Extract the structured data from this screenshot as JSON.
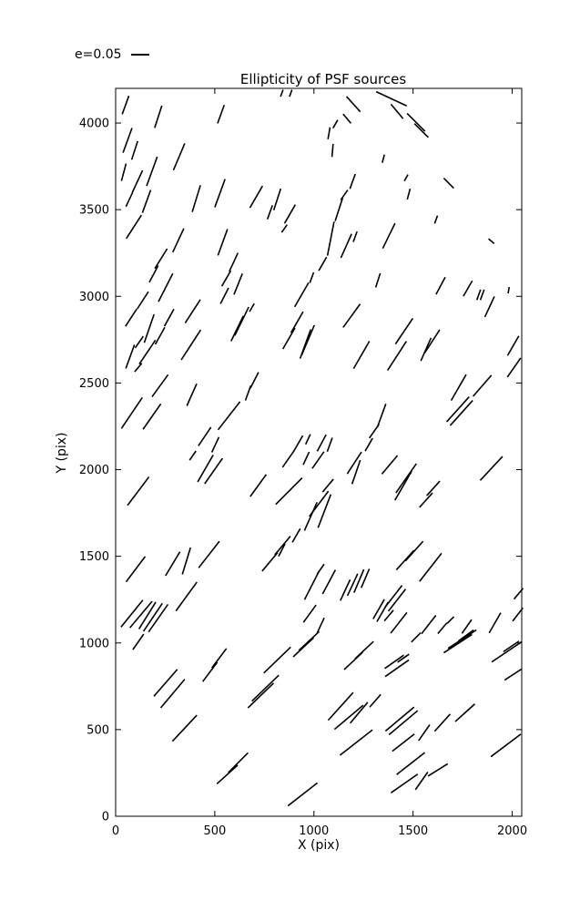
{
  "figure": {
    "title": "Ellipticity of PSF sources",
    "xlabel": "X (pix)",
    "ylabel": "Y (pix)",
    "legend_label": "e=0.05"
  },
  "colors": {
    "stroke": "#000000",
    "background": "#ffffff"
  },
  "chart_data": {
    "type": "scatter",
    "mark": "whisker",
    "title": "Ellipticity of PSF sources",
    "xlabel": "X (pix)",
    "ylabel": "Y (pix)",
    "xlim": [
      0,
      2048
    ],
    "ylim": [
      0,
      4200
    ],
    "xticks": [
      0,
      500,
      1000,
      1500,
      2000
    ],
    "yticks": [
      0,
      500,
      1000,
      1500,
      2000,
      2500,
      3000,
      3500,
      4000
    ],
    "grid": false,
    "legend": {
      "label": "e=0.05",
      "e_ref": 0.05,
      "position": "above-left"
    },
    "columns": [
      "x",
      "y",
      "e",
      "theta_deg"
    ],
    "points": [
      [
        50,
        4104,
        0.058,
        70
      ],
      [
        215,
        4036,
        0.069,
        72
      ],
      [
        531,
        4051,
        0.058,
        70
      ],
      [
        60,
        3900,
        0.078,
        70
      ],
      [
        96,
        3842,
        0.058,
        72
      ],
      [
        320,
        3805,
        0.086,
        67
      ],
      [
        183,
        3721,
        0.092,
        70
      ],
      [
        41,
        3716,
        0.053,
        75
      ],
      [
        110,
        3663,
        0.072,
        65
      ],
      [
        69,
        3559,
        0.047,
        65
      ],
      [
        156,
        3548,
        0.072,
        70
      ],
      [
        407,
        3564,
        0.083,
        73
      ],
      [
        526,
        3595,
        0.089,
        70
      ],
      [
        92,
        3401,
        0.083,
        57
      ],
      [
        316,
        3323,
        0.078,
        65
      ],
      [
        540,
        3312,
        0.083,
        70
      ],
      [
        229,
        3218,
        0.069,
        58
      ],
      [
        595,
        3197,
        0.061,
        65
      ],
      [
        838,
        4172,
        0.022,
        70
      ],
      [
        883,
        4172,
        0.022,
        70
      ],
      [
        1199,
        4109,
        0.061,
        -48
      ],
      [
        1167,
        4025,
        0.036,
        -50
      ],
      [
        1108,
        3994,
        0.028,
        60
      ],
      [
        1076,
        3941,
        0.036,
        80
      ],
      [
        1094,
        3842,
        0.039,
        85
      ],
      [
        1350,
        3794,
        0.025,
        75
      ],
      [
        1195,
        3663,
        0.047,
        70
      ],
      [
        1153,
        3585,
        0.036,
        55
      ],
      [
        709,
        3574,
        0.075,
        60
      ],
      [
        815,
        3559,
        0.067,
        72
      ],
      [
        778,
        3485,
        0.044,
        70
      ],
      [
        879,
        3475,
        0.064,
        60
      ],
      [
        851,
        3391,
        0.028,
        55
      ],
      [
        1126,
        3501,
        0.072,
        72
      ],
      [
        1085,
        3333,
        0.103,
        79
      ],
      [
        1163,
        3291,
        0.078,
        66
      ],
      [
        1208,
        3344,
        0.033,
        70
      ],
      [
        1044,
        3187,
        0.047,
        60
      ],
      [
        1391,
        4140,
        0.1,
        -25
      ],
      [
        1419,
        4067,
        0.056,
        -50
      ],
      [
        1515,
        4004,
        0.075,
        -45
      ],
      [
        1542,
        3957,
        0.058,
        -45
      ],
      [
        1465,
        3684,
        0.022,
        60
      ],
      [
        1680,
        3653,
        0.042,
        -45
      ],
      [
        1478,
        3590,
        0.033,
        75
      ],
      [
        1616,
        3443,
        0.025,
        70
      ],
      [
        1378,
        3349,
        0.083,
        64
      ],
      [
        1895,
        3318,
        0.022,
        -40
      ],
      [
        192,
        3129,
        0.056,
        62
      ],
      [
        252,
        3050,
        0.094,
        63
      ],
      [
        558,
        3103,
        0.053,
        60
      ],
      [
        618,
        3071,
        0.067,
        68
      ],
      [
        137,
        2977,
        0.061,
        57
      ],
      [
        78,
        2877,
        0.061,
        57
      ],
      [
        549,
        3003,
        0.053,
        63
      ],
      [
        389,
        2914,
        0.083,
        57
      ],
      [
        169,
        2814,
        0.089,
        71
      ],
      [
        270,
        2877,
        0.058,
        61
      ],
      [
        224,
        2772,
        0.058,
        61
      ],
      [
        636,
        2856,
        0.094,
        64
      ],
      [
        613,
        2814,
        0.083,
        64
      ],
      [
        119,
        2736,
        0.042,
        55
      ],
      [
        73,
        2652,
        0.075,
        70
      ],
      [
        160,
        2678,
        0.086,
        56
      ],
      [
        114,
        2589,
        0.033,
        50
      ],
      [
        380,
        2720,
        0.106,
        57
      ],
      [
        224,
        2484,
        0.081,
        54
      ],
      [
        384,
        2432,
        0.072,
        66
      ],
      [
        668,
        2442,
        0.047,
        70
      ],
      [
        82,
        2327,
        0.111,
        56
      ],
      [
        183,
        2306,
        0.092,
        55
      ],
      [
        572,
        2311,
        0.106,
        52
      ],
      [
        449,
        2191,
        0.067,
        56
      ],
      [
        503,
        2144,
        0.05,
        65
      ],
      [
        989,
        3108,
        0.033,
        70
      ],
      [
        938,
        3009,
        0.083,
        60
      ],
      [
        687,
        2935,
        0.028,
        60
      ],
      [
        915,
        2851,
        0.072,
        60
      ],
      [
        874,
        2757,
        0.072,
        60
      ],
      [
        970,
        2747,
        0.097,
        67
      ],
      [
        957,
        2725,
        0.092,
        70
      ],
      [
        1190,
        2888,
        0.086,
        54
      ],
      [
        1323,
        3092,
        0.044,
        72
      ],
      [
        1240,
        2662,
        0.094,
        60
      ],
      [
        700,
        2516,
        0.053,
        63
      ],
      [
        1341,
        2311,
        0.075,
        70
      ],
      [
        1304,
        2222,
        0.05,
        55
      ],
      [
        1277,
        2144,
        0.044,
        60
      ],
      [
        920,
        2149,
        0.056,
        60
      ],
      [
        970,
        2175,
        0.033,
        65
      ],
      [
        1039,
        2154,
        0.056,
        62
      ],
      [
        1080,
        2144,
        0.044,
        70
      ],
      [
        1639,
        3061,
        0.058,
        62
      ],
      [
        1776,
        3045,
        0.053,
        60
      ],
      [
        1831,
        3009,
        0.033,
        70
      ],
      [
        1849,
        3009,
        0.033,
        70
      ],
      [
        1886,
        2940,
        0.067,
        65
      ],
      [
        1982,
        3035,
        0.019,
        80
      ],
      [
        1455,
        2799,
        0.092,
        56
      ],
      [
        1419,
        2657,
        0.103,
        57
      ],
      [
        1597,
        2741,
        0.081,
        57
      ],
      [
        1565,
        2694,
        0.075,
        66
      ],
      [
        2005,
        2715,
        0.067,
        60
      ],
      [
        2009,
        2589,
        0.069,
        55
      ],
      [
        1730,
        2474,
        0.089,
        60
      ],
      [
        1849,
        2484,
        0.083,
        49
      ],
      [
        1726,
        2348,
        0.1,
        48
      ],
      [
        1744,
        2327,
        0.1,
        48
      ],
      [
        389,
        2081,
        0.033,
        55
      ],
      [
        453,
        2007,
        0.092,
        60
      ],
      [
        494,
        1992,
        0.092,
        55
      ],
      [
        114,
        1876,
        0.106,
        53
      ],
      [
        101,
        1426,
        0.094,
        53
      ],
      [
        288,
        1457,
        0.083,
        59
      ],
      [
        357,
        1473,
        0.083,
        73
      ],
      [
        471,
        1510,
        0.1,
        52
      ],
      [
        357,
        1268,
        0.106,
        54
      ],
      [
        82,
        1169,
        0.103,
        51
      ],
      [
        128,
        1164,
        0.103,
        50
      ],
      [
        160,
        1158,
        0.094,
        58
      ],
      [
        188,
        1148,
        0.1,
        56
      ],
      [
        215,
        1143,
        0.1,
        55
      ],
      [
        114,
        1006,
        0.056,
        55
      ],
      [
        870,
        2060,
        0.058,
        55
      ],
      [
        961,
        2065,
        0.042,
        65
      ],
      [
        1021,
        2055,
        0.061,
        55
      ],
      [
        1204,
        2039,
        0.078,
        57
      ],
      [
        1213,
        1986,
        0.075,
        71
      ],
      [
        719,
        1908,
        0.081,
        54
      ],
      [
        874,
        1876,
        0.111,
        45
      ],
      [
        1071,
        1908,
        0.05,
        50
      ],
      [
        1025,
        1803,
        0.094,
        53
      ],
      [
        1053,
        1761,
        0.106,
        69
      ],
      [
        984,
        1730,
        0.092,
        66
      ],
      [
        911,
        1620,
        0.047,
        60
      ],
      [
        842,
        1562,
        0.072,
        50
      ],
      [
        778,
        1468,
        0.072,
        50
      ],
      [
        838,
        1536,
        0.042,
        63
      ],
      [
        1034,
        1426,
        0.036,
        55
      ],
      [
        989,
        1331,
        0.094,
        63
      ],
      [
        1076,
        1352,
        0.081,
        62
      ],
      [
        1158,
        1305,
        0.069,
        65
      ],
      [
        1195,
        1336,
        0.072,
        65
      ],
      [
        1227,
        1357,
        0.075,
        67
      ],
      [
        1259,
        1373,
        0.061,
        67
      ],
      [
        979,
        1169,
        0.064,
        54
      ],
      [
        1034,
        1101,
        0.05,
        65
      ],
      [
        1327,
        1195,
        0.067,
        60
      ],
      [
        1346,
        1179,
        0.067,
        60
      ],
      [
        1382,
        2028,
        0.072,
        50
      ],
      [
        1465,
        1950,
        0.106,
        55
      ],
      [
        1451,
        1908,
        0.1,
        60
      ],
      [
        1602,
        1892,
        0.058,
        48
      ],
      [
        1565,
        1824,
        0.058,
        48
      ],
      [
        1895,
        2007,
        0.097,
        47
      ],
      [
        1506,
        1530,
        0.078,
        48
      ],
      [
        1460,
        1478,
        0.078,
        48
      ],
      [
        1588,
        1436,
        0.106,
        52
      ],
      [
        1401,
        1268,
        0.083,
        52
      ],
      [
        1419,
        1247,
        0.083,
        52
      ],
      [
        1378,
        1158,
        0.042,
        50
      ],
      [
        1428,
        1116,
        0.078,
        52
      ],
      [
        1579,
        1106,
        0.069,
        52
      ],
      [
        1648,
        1085,
        0.042,
        50
      ],
      [
        1689,
        1132,
        0.028,
        45
      ],
      [
        1771,
        1095,
        0.05,
        55
      ],
      [
        1913,
        1116,
        0.069,
        60
      ],
      [
        2032,
        1284,
        0.042,
        50
      ],
      [
        2028,
        1164,
        0.05,
        52
      ],
      [
        252,
        770,
        0.106,
        49
      ],
      [
        288,
        708,
        0.111,
        50
      ],
      [
        522,
        912,
        0.072,
        53
      ],
      [
        476,
        833,
        0.072,
        53
      ],
      [
        348,
        508,
        0.106,
        47
      ],
      [
        618,
        309,
        0.083,
        45
      ],
      [
        563,
        241,
        0.083,
        42
      ],
      [
        975,
        1011,
        0.083,
        43
      ],
      [
        947,
        975,
        0.083,
        43
      ],
      [
        815,
        901,
        0.111,
        44
      ],
      [
        755,
        739,
        0.111,
        44
      ],
      [
        732,
        697,
        0.106,
        44
      ],
      [
        1254,
        959,
        0.075,
        43
      ],
      [
        1199,
        896,
        0.075,
        43
      ],
      [
        1135,
        634,
        0.111,
        48
      ],
      [
        1176,
        571,
        0.111,
        40
      ],
      [
        1227,
        597,
        0.081,
        50
      ],
      [
        1309,
        666,
        0.05,
        49
      ],
      [
        1213,
        425,
        0.122,
        38
      ],
      [
        943,
        126,
        0.111,
        38
      ],
      [
        1515,
        1032,
        0.039,
        45
      ],
      [
        1419,
        854,
        0.086,
        35
      ],
      [
        1405,
        891,
        0.069,
        35
      ],
      [
        1451,
        912,
        0.042,
        35
      ],
      [
        1748,
        1022,
        0.1,
        33
      ],
      [
        1726,
        996,
        0.1,
        33
      ],
      [
        1767,
        1043,
        0.056,
        36
      ],
      [
        1973,
        949,
        0.108,
        34
      ],
      [
        1995,
        980,
        0.056,
        34
      ],
      [
        2005,
        818,
        0.061,
        33
      ],
      [
        1762,
        597,
        0.078,
        42
      ],
      [
        1648,
        540,
        0.069,
        48
      ],
      [
        1433,
        561,
        0.111,
        40
      ],
      [
        1451,
        540,
        0.111,
        40
      ],
      [
        1556,
        482,
        0.058,
        55
      ],
      [
        1451,
        425,
        0.083,
        38
      ],
      [
        1968,
        409,
        0.111,
        37
      ],
      [
        1488,
        304,
        0.106,
        38
      ],
      [
        1625,
        267,
        0.069,
        32
      ],
      [
        1543,
        204,
        0.064,
        55
      ],
      [
        1456,
        189,
        0.097,
        35
      ]
    ]
  }
}
